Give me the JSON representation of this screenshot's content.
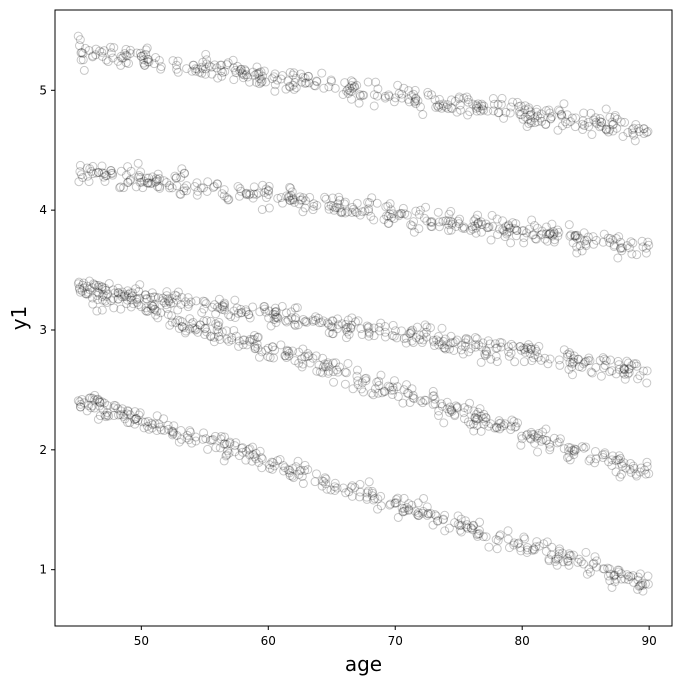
{
  "chart_data": {
    "type": "scatter",
    "xlabel": "age",
    "ylabel": "y1",
    "xlim": [
      43.2,
      91.8
    ],
    "ylim": [
      0.53,
      5.67
    ],
    "xticks": [
      50,
      60,
      70,
      80,
      90
    ],
    "yticks": [
      1,
      2,
      3,
      4,
      5
    ],
    "grid": false,
    "marker": {
      "shape": "open-circle",
      "color": "#000000",
      "opacity": 0.22
    },
    "x_range_observed": [
      45,
      90
    ],
    "trends": [
      {
        "intercept_at_45": 5.33,
        "slope_per_year": -0.0148,
        "noise_sd": 0.045,
        "points": 380
      },
      {
        "intercept_at_45": 4.32,
        "slope_per_year": -0.0142,
        "noise_sd": 0.045,
        "points": 380
      },
      {
        "intercept_at_45": 3.36,
        "slope_per_year": -0.0158,
        "noise_sd": 0.045,
        "points": 380
      },
      {
        "intercept_at_45": 3.36,
        "slope_per_year": -0.0348,
        "noise_sd": 0.045,
        "points": 380
      },
      {
        "intercept_at_45": 2.42,
        "slope_per_year": -0.0348,
        "noise_sd": 0.045,
        "points": 380
      }
    ]
  }
}
